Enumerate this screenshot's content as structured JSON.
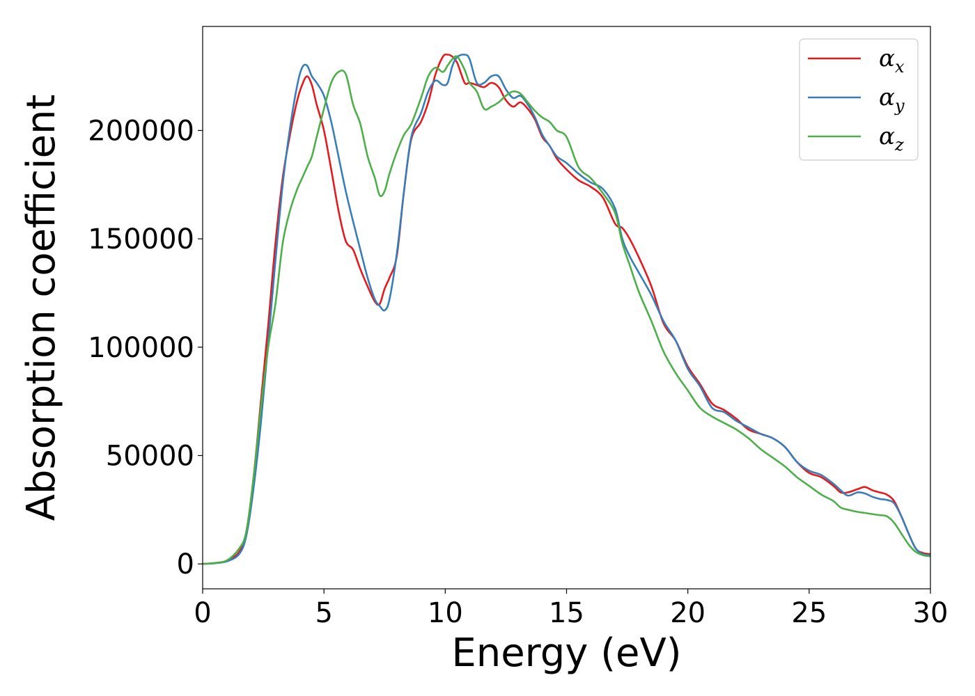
{
  "chart_data": {
    "type": "line",
    "title": "",
    "xlabel": "Energy (eV)",
    "ylabel": "Absorption coefficient",
    "xlim": [
      0,
      30
    ],
    "ylim": [
      -11500,
      248000
    ],
    "xticks": [
      0,
      5,
      10,
      15,
      20,
      25,
      30
    ],
    "xtick_labels": [
      "0",
      "5",
      "10",
      "15",
      "20",
      "25",
      "30"
    ],
    "yticks": [
      0,
      50000,
      100000,
      150000,
      200000
    ],
    "ytick_labels": [
      "0",
      "50000",
      "100000",
      "150000",
      "200000"
    ],
    "grid": false,
    "legend_position": "top-right",
    "series": [
      {
        "name": "α_x",
        "symbol": "α",
        "subscript": "x",
        "color": "#e41a1c",
        "x": [
          0,
          0.5,
          1,
          1.5,
          1.8,
          2.1,
          2.4,
          2.7,
          3,
          3.3,
          3.6,
          3.9,
          4.1,
          4.3,
          4.5,
          4.7,
          5,
          5.3,
          5.6,
          5.9,
          6.2,
          6.5,
          6.8,
          7.1,
          7.3,
          7.5,
          7.7,
          8,
          8.3,
          8.6,
          9,
          9.3,
          9.6,
          9.9,
          10.1,
          10.3,
          10.5,
          10.8,
          11,
          11.3,
          11.6,
          11.9,
          12.2,
          12.5,
          12.8,
          13.1,
          13.4,
          13.7,
          14,
          14.3,
          14.6,
          15,
          15.5,
          16,
          16.5,
          17,
          17.3,
          17.6,
          18,
          18.5,
          19,
          19.5,
          20,
          20.5,
          21,
          21.5,
          22,
          22.5,
          23,
          23.5,
          24,
          24.5,
          25,
          25.5,
          26,
          26.3,
          26.6,
          27,
          27.3,
          27.6,
          27.9,
          28.2,
          28.5,
          28.8,
          29.1,
          29.4,
          29.7,
          30
        ],
        "y": [
          0,
          400,
          1500,
          5500,
          15000,
          40000,
          75000,
          110000,
          148000,
          178000,
          198000,
          214000,
          221000,
          225000,
          221000,
          212000,
          200000,
          182000,
          163000,
          149000,
          145000,
          136000,
          128000,
          121000,
          120000,
          127000,
          132000,
          142000,
          172000,
          196000,
          204000,
          213000,
          226000,
          234000,
          235000,
          234000,
          231000,
          222000,
          222000,
          221000,
          220000,
          222000,
          220000,
          214000,
          211000,
          213000,
          210000,
          205000,
          197000,
          193000,
          187000,
          182000,
          177000,
          174000,
          169000,
          157000,
          155000,
          150000,
          141000,
          128000,
          111000,
          103000,
          91000,
          83000,
          74000,
          71000,
          67000,
          62000,
          60000,
          58000,
          54000,
          47000,
          42000,
          40000,
          36000,
          33000,
          33000,
          34500,
          35500,
          34000,
          33000,
          32000,
          29000,
          22000,
          14000,
          7000,
          5000,
          4500
        ]
      },
      {
        "name": "α_y",
        "symbol": "α",
        "subscript": "y",
        "color": "#377eb8",
        "x": [
          0,
          0.5,
          1,
          1.5,
          1.8,
          2.1,
          2.4,
          2.7,
          3,
          3.3,
          3.6,
          3.9,
          4.1,
          4.3,
          4.5,
          4.7,
          5,
          5.3,
          5.6,
          5.9,
          6.2,
          6.5,
          6.8,
          7.1,
          7.3,
          7.5,
          7.7,
          8,
          8.3,
          8.6,
          9,
          9.3,
          9.6,
          9.9,
          10.1,
          10.3,
          10.5,
          10.8,
          11,
          11.3,
          11.6,
          11.9,
          12.2,
          12.5,
          12.8,
          13.1,
          13.4,
          13.7,
          14,
          14.3,
          14.6,
          15,
          15.5,
          16,
          16.5,
          17,
          17.3,
          17.6,
          18,
          18.5,
          19,
          19.5,
          20,
          20.5,
          21,
          21.5,
          22,
          22.5,
          23,
          23.5,
          24,
          24.5,
          25,
          25.5,
          26,
          26.3,
          26.6,
          27,
          27.3,
          27.6,
          27.9,
          28.2,
          28.5,
          28.8,
          29.1,
          29.4,
          29.7,
          30
        ],
        "y": [
          0,
          300,
          1200,
          4500,
          13000,
          35000,
          65000,
          102000,
          140000,
          175000,
          201000,
          221000,
          229000,
          230000,
          225000,
          222000,
          216000,
          204000,
          188000,
          172000,
          158000,
          145000,
          132000,
          122000,
          119000,
          117000,
          122000,
          143000,
          172000,
          197000,
          208000,
          218000,
          223000,
          221000,
          222000,
          230000,
          234000,
          235000,
          233000,
          222000,
          222000,
          225000,
          225000,
          219000,
          215000,
          216000,
          212000,
          206000,
          198000,
          193000,
          188000,
          185000,
          180000,
          176000,
          173000,
          164000,
          150000,
          142000,
          134000,
          124000,
          112000,
          103000,
          90000,
          82000,
          72000,
          70000,
          66000,
          63000,
          60000,
          58000,
          54000,
          47000,
          43000,
          41000,
          37000,
          34000,
          31500,
          33000,
          32500,
          31000,
          30000,
          29500,
          28000,
          22000,
          14000,
          7000,
          4500,
          4000
        ]
      },
      {
        "name": "α_z",
        "symbol": "α",
        "subscript": "z",
        "color": "#4daf4a",
        "x": [
          0,
          0.5,
          1,
          1.5,
          1.8,
          2.1,
          2.4,
          2.7,
          3,
          3.3,
          3.6,
          3.9,
          4.1,
          4.3,
          4.5,
          4.7,
          5,
          5.3,
          5.6,
          5.9,
          6.2,
          6.5,
          6.8,
          7.1,
          7.3,
          7.5,
          7.7,
          8,
          8.3,
          8.6,
          9,
          9.3,
          9.6,
          9.9,
          10.1,
          10.3,
          10.5,
          10.8,
          11,
          11.3,
          11.6,
          11.9,
          12.2,
          12.5,
          12.8,
          13.1,
          13.4,
          13.7,
          14,
          14.3,
          14.6,
          15,
          15.5,
          16,
          16.5,
          17,
          17.3,
          17.6,
          18,
          18.5,
          19,
          19.5,
          20,
          20.5,
          21,
          21.5,
          22,
          22.5,
          23,
          23.5,
          24,
          24.5,
          25,
          25.5,
          26,
          26.3,
          26.6,
          27,
          27.3,
          27.6,
          27.9,
          28.2,
          28.5,
          28.8,
          29.1,
          29.4,
          29.7,
          30
        ],
        "y": [
          0,
          400,
          1600,
          7000,
          15000,
          40000,
          72000,
          100000,
          120000,
          148000,
          163000,
          173000,
          178000,
          183000,
          188000,
          197000,
          210000,
          222000,
          227000,
          226000,
          212000,
          203000,
          188000,
          178000,
          170000,
          172000,
          180000,
          190000,
          198000,
          203000,
          215000,
          225000,
          229000,
          227000,
          230000,
          233000,
          234000,
          228000,
          222000,
          218000,
          210000,
          211000,
          213000,
          216000,
          218000,
          217000,
          213000,
          209000,
          206000,
          204000,
          200000,
          197000,
          183000,
          178000,
          171000,
          162000,
          148000,
          138000,
          125000,
          112000,
          98000,
          88000,
          80000,
          72000,
          68000,
          65000,
          62000,
          58000,
          53000,
          49000,
          45000,
          40000,
          36000,
          32000,
          29000,
          26000,
          25000,
          24000,
          23500,
          23000,
          22500,
          22000,
          19000,
          14000,
          9000,
          5500,
          4000,
          3500
        ]
      }
    ]
  }
}
